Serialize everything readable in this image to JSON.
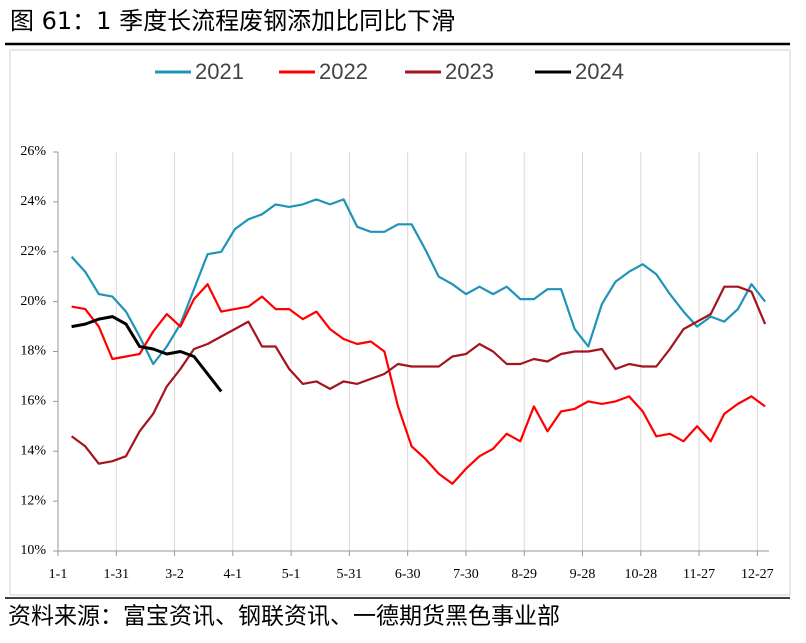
{
  "chart_data": {
    "type": "line",
    "title": "图 61：1 季度长流程废钢添加比同比下滑",
    "source": "资料来源：富宝资讯、钢联资讯、一德期货黑色事业部",
    "x": [
      7,
      14,
      21,
      28,
      35,
      42,
      49,
      56,
      63,
      70,
      77,
      84,
      91,
      98,
      105,
      112,
      119,
      126,
      133,
      140,
      147,
      154,
      161,
      168,
      175,
      182,
      189,
      196,
      203,
      210,
      217,
      224,
      231,
      238,
      245,
      252,
      259,
      266,
      273,
      280,
      287,
      294,
      301,
      308,
      315,
      322,
      329,
      336,
      343,
      350,
      357,
      364
    ],
    "xlim": [
      0,
      366
    ],
    "xticks": [
      {
        "value": 0,
        "label": "1-1"
      },
      {
        "value": 30,
        "label": "1-31"
      },
      {
        "value": 60,
        "label": "3-2"
      },
      {
        "value": 90,
        "label": "4-1"
      },
      {
        "value": 120,
        "label": "5-1"
      },
      {
        "value": 150,
        "label": "5-31"
      },
      {
        "value": 180,
        "label": "6-30"
      },
      {
        "value": 210,
        "label": "7-30"
      },
      {
        "value": 240,
        "label": "8-29"
      },
      {
        "value": 270,
        "label": "9-28"
      },
      {
        "value": 300,
        "label": "10-28"
      },
      {
        "value": 330,
        "label": "11-27"
      },
      {
        "value": 360,
        "label": "12-27"
      }
    ],
    "ylim": [
      10,
      26
    ],
    "yticks": [
      {
        "value": 10,
        "label": "10%"
      },
      {
        "value": 12,
        "label": "12%"
      },
      {
        "value": 14,
        "label": "14%"
      },
      {
        "value": 16,
        "label": "16%"
      },
      {
        "value": 18,
        "label": "18%"
      },
      {
        "value": 20,
        "label": "20%"
      },
      {
        "value": 22,
        "label": "22%"
      },
      {
        "value": 24,
        "label": "24%"
      },
      {
        "value": 26,
        "label": "26%"
      }
    ],
    "grid": "x",
    "legend": "top",
    "series": [
      {
        "name": "2021",
        "color": "#1f93b8",
        "values": [
          21.8,
          21.2,
          20.3,
          20.2,
          19.6,
          18.6,
          17.5,
          18.2,
          19.1,
          20.5,
          21.9,
          22.0,
          22.9,
          23.3,
          23.5,
          23.9,
          23.8,
          23.9,
          24.1,
          23.9,
          24.1,
          23.0,
          22.8,
          22.8,
          23.1,
          23.1,
          22.1,
          21.0,
          20.7,
          20.3,
          20.6,
          20.3,
          20.6,
          20.1,
          20.1,
          20.5,
          20.5,
          18.9,
          18.2,
          19.9,
          20.8,
          21.2,
          21.5,
          21.1,
          20.3,
          19.6,
          19.0,
          19.4,
          19.2,
          19.7,
          20.7,
          20.0
        ]
      },
      {
        "name": "2022",
        "color": "#ff0000",
        "values": [
          19.8,
          19.7,
          19.0,
          17.7,
          17.8,
          17.9,
          18.8,
          19.5,
          19.0,
          20.1,
          20.7,
          19.6,
          19.7,
          19.8,
          20.2,
          19.7,
          19.7,
          19.3,
          19.6,
          18.9,
          18.5,
          18.3,
          18.4,
          18.0,
          15.8,
          14.2,
          13.7,
          13.1,
          12.7,
          13.3,
          13.8,
          14.1,
          14.7,
          14.4,
          15.8,
          14.8,
          15.6,
          15.7,
          16.0,
          15.9,
          16.0,
          16.2,
          15.6,
          14.6,
          14.7,
          14.4,
          15.0,
          14.4,
          15.5,
          15.9,
          16.2,
          15.8
        ]
      },
      {
        "name": "2023",
        "color": "#a3141f",
        "values": [
          14.6,
          14.2,
          13.5,
          13.6,
          13.8,
          14.8,
          15.5,
          16.6,
          17.3,
          18.1,
          18.3,
          18.6,
          18.9,
          19.2,
          18.2,
          18.2,
          17.3,
          16.7,
          16.8,
          16.5,
          16.8,
          16.7,
          16.9,
          17.1,
          17.5,
          17.4,
          17.4,
          17.4,
          17.8,
          17.9,
          18.3,
          18.0,
          17.5,
          17.5,
          17.7,
          17.6,
          17.9,
          18.0,
          18.0,
          18.1,
          17.3,
          17.5,
          17.4,
          17.4,
          18.1,
          18.9,
          19.2,
          19.5,
          20.6,
          20.6,
          20.4,
          19.1
        ]
      },
      {
        "name": "2024",
        "color": "#000000",
        "values": [
          19.0,
          19.1,
          19.3,
          19.4,
          19.1,
          18.2,
          18.1,
          17.9,
          18.0,
          17.8,
          17.1,
          16.4,
          null,
          null,
          null,
          null,
          null,
          null,
          null,
          null,
          null,
          null,
          null,
          null,
          null,
          null,
          null,
          null,
          null,
          null,
          null,
          null,
          null,
          null,
          null,
          null,
          null,
          null,
          null,
          null,
          null,
          null,
          null,
          null,
          null,
          null,
          null,
          null,
          null,
          null,
          null,
          null
        ]
      }
    ]
  }
}
